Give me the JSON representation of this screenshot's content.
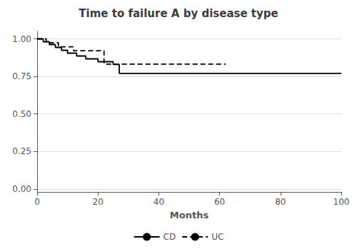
{
  "chart_data": {
    "type": "step",
    "title": "Time to failure A by disease type",
    "xlabel": "Months",
    "xlim": [
      0,
      100
    ],
    "ylim": [
      -0.02,
      1.05
    ],
    "xticks": [
      0,
      20,
      40,
      60,
      80,
      100
    ],
    "yticks": [
      {
        "value": 0.0,
        "label": "0.00"
      },
      {
        "value": 0.25,
        "label": "0.25"
      },
      {
        "value": 0.5,
        "label": "0.50"
      },
      {
        "value": 0.75,
        "label": "0.75"
      },
      {
        "value": 1.0,
        "label": "1.00"
      }
    ],
    "grid": "y",
    "legend": "bottom",
    "background_color": "#ffffff",
    "series": [
      {
        "name": "CD",
        "color": "#000000",
        "line_style": "solid",
        "x": [
          0,
          2,
          4,
          6,
          8,
          10,
          13,
          16,
          20,
          25,
          27,
          92,
          100
        ],
        "values": [
          1.0,
          0.981,
          0.962,
          0.943,
          0.924,
          0.905,
          0.886,
          0.867,
          0.848,
          0.829,
          0.77,
          0.77,
          0.77
        ]
      },
      {
        "name": "UC",
        "color": "#000000",
        "line_style": "dashed",
        "x": [
          0,
          3,
          7,
          12,
          22,
          60,
          62
        ],
        "values": [
          1.0,
          0.974,
          0.947,
          0.921,
          0.832,
          0.832,
          0.832
        ]
      }
    ]
  }
}
